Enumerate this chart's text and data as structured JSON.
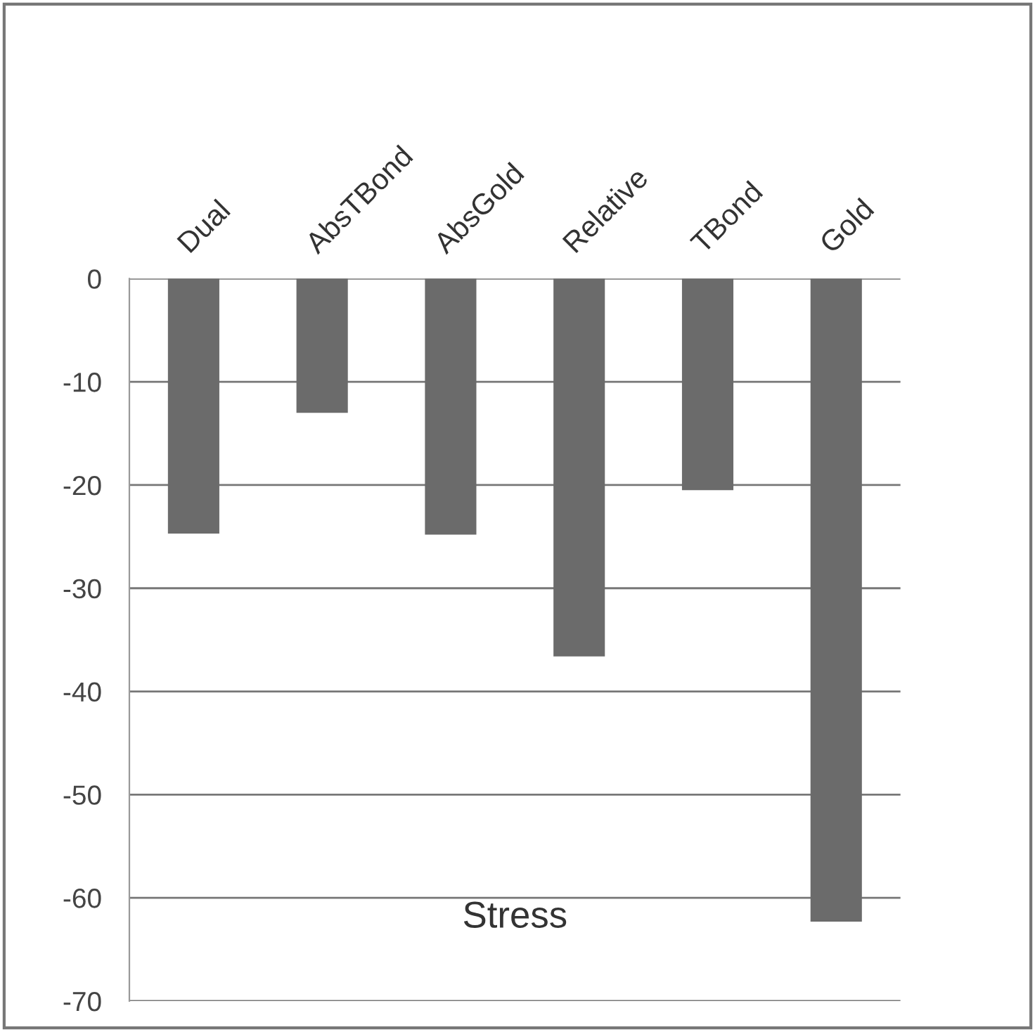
{
  "chart_data": {
    "type": "bar",
    "title": "Stress",
    "categories": [
      "Dual",
      "AbsTBond",
      "AbsGold",
      "Relative",
      "TBond",
      "Gold"
    ],
    "values": [
      -24.7,
      -13.0,
      -24.8,
      -36.6,
      -20.5,
      -62.3
    ],
    "color": "#6b6b6b",
    "ylim": [
      -70,
      0
    ],
    "yticks": [
      0,
      -10,
      -20,
      -30,
      -40,
      -50,
      -60,
      -70
    ],
    "grid": "y"
  }
}
